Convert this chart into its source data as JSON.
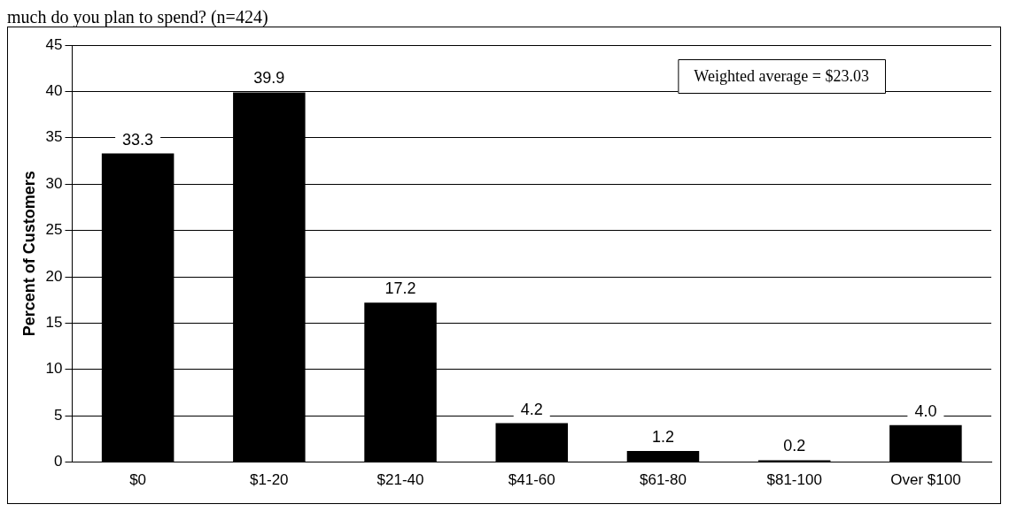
{
  "chart_data": {
    "type": "bar",
    "title": "much do you plan to spend? (n=424)",
    "ylabel": "Percent of Customers",
    "categories": [
      "$0",
      "$1-20",
      "$21-40",
      "$41-60",
      "$61-80",
      "$81-100",
      "Over $100"
    ],
    "values": [
      33.3,
      39.9,
      17.2,
      4.2,
      1.2,
      0.2,
      4.0
    ],
    "value_labels": [
      "33.3",
      "39.9",
      "17.2",
      "4.2",
      "1.2",
      "0.2",
      "4.0"
    ],
    "color": "#000000",
    "ylim": [
      0,
      45
    ],
    "yticks": [
      0,
      5,
      10,
      15,
      20,
      25,
      30,
      35,
      40,
      45
    ],
    "grid": "y",
    "annotations": [
      "Weighted average = $23.03"
    ]
  }
}
